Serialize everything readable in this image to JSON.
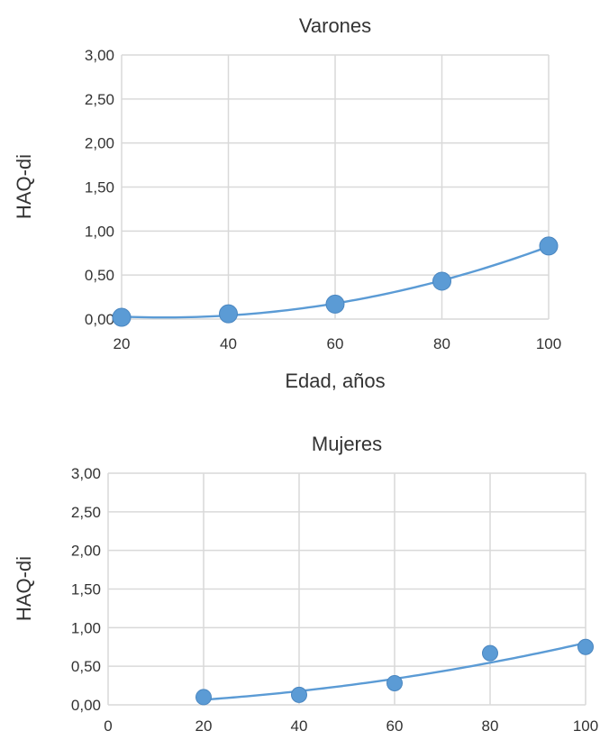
{
  "chart_data": [
    {
      "type": "scatter",
      "title": "Varones",
      "xlabel": "Edad, años",
      "ylabel": "HAQ-di",
      "xlim": [
        20,
        100
      ],
      "ylim": [
        0,
        3
      ],
      "x_ticks": [
        20,
        40,
        60,
        80,
        100
      ],
      "x_tick_labels": [
        "20",
        "40",
        "60",
        "80",
        "100"
      ],
      "y_ticks": [
        0,
        0.5,
        1,
        1.5,
        2,
        2.5,
        3
      ],
      "y_tick_labels": [
        "0,00",
        "0,50",
        "1,00",
        "1,50",
        "2,00",
        "2,50",
        "3,00"
      ],
      "grid": true,
      "trendline": "polynomial",
      "series": [
        {
          "x": [
            20,
            40,
            60,
            80,
            100
          ],
          "y": [
            0.02,
            0.06,
            0.17,
            0.43,
            0.83
          ],
          "color": "#5b9bd5"
        }
      ]
    },
    {
      "type": "scatter",
      "title": "Mujeres",
      "xlabel": "",
      "ylabel": "HAQ-di",
      "xlim": [
        0,
        100
      ],
      "ylim": [
        0,
        3
      ],
      "x_ticks": [
        0,
        20,
        40,
        60,
        80,
        100
      ],
      "x_tick_labels": [
        "0",
        "20",
        "40",
        "60",
        "80",
        "100"
      ],
      "y_ticks": [
        0,
        0.5,
        1,
        1.5,
        2,
        2.5,
        3
      ],
      "y_tick_labels": [
        "0,00",
        "0,50",
        "1,00",
        "1,50",
        "2,00",
        "2,50",
        "3,00"
      ],
      "grid": true,
      "trendline": "polynomial",
      "series": [
        {
          "x": [
            20,
            40,
            60,
            80,
            100
          ],
          "y": [
            0.1,
            0.13,
            0.28,
            0.67,
            0.75
          ],
          "color": "#5b9bd5"
        }
      ]
    }
  ]
}
